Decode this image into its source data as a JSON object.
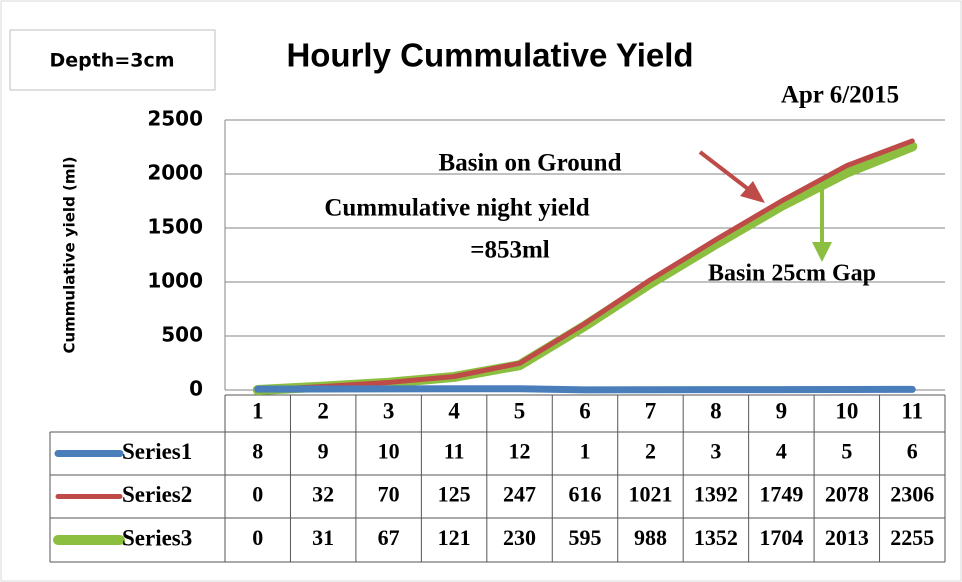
{
  "chart_data": {
    "type": "line",
    "title": "Hourly Cummulative Yield",
    "y_label": "Cummulative yield (ml)",
    "annotations": [
      "Depth=3cm",
      "Apr 6/2015",
      "Basin on Ground",
      "Cummulative night yield",
      "=853ml",
      "Basin 25cm Gap"
    ],
    "categories": [
      1,
      2,
      3,
      4,
      5,
      6,
      7,
      8,
      9,
      10,
      11
    ],
    "series": [
      {
        "name": "Series1",
        "color": "#4a7ebb",
        "values": [
          8,
          9,
          10,
          11,
          12,
          1,
          2,
          3,
          4,
          5,
          6
        ]
      },
      {
        "name": "Series2",
        "color": "#be4b48",
        "values": [
          0,
          32,
          70,
          125,
          247,
          616,
          1021,
          1392,
          1749,
          2078,
          2306
        ]
      },
      {
        "name": "Series3",
        "color": "#8cbf3f",
        "values": [
          0,
          31,
          67,
          121,
          230,
          595,
          988,
          1352,
          1704,
          2013,
          2255
        ]
      }
    ],
    "ylim": [
      0,
      2500
    ],
    "yticks": [
      0,
      500,
      1000,
      1500,
      2000,
      2500
    ],
    "grid": true
  }
}
